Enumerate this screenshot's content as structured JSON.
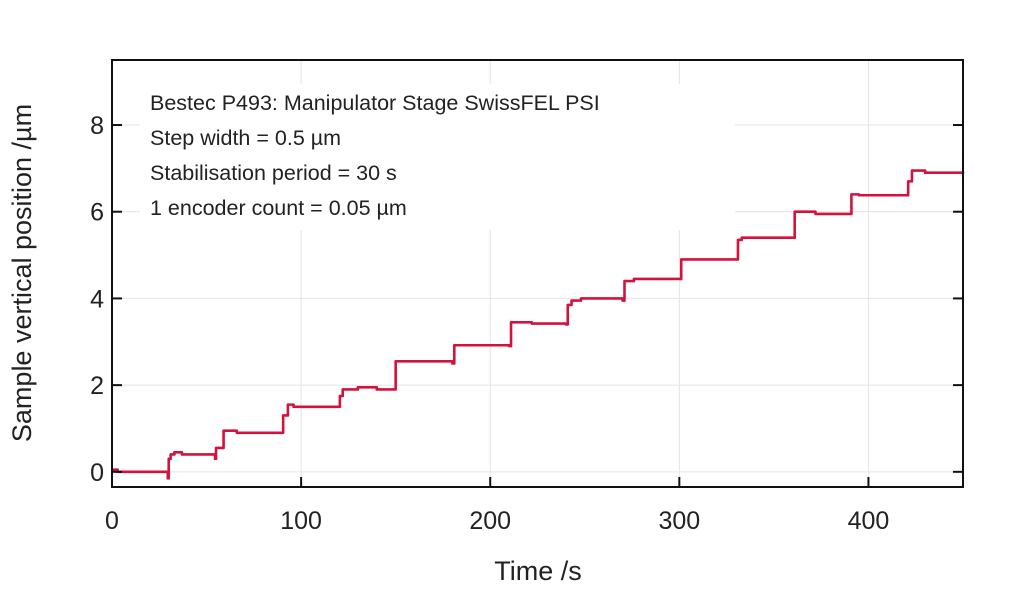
{
  "chart_data": {
    "type": "line",
    "title": "",
    "xlabel": "Time /s",
    "ylabel": "Sample vertical position /µm",
    "xlim": [
      0,
      450
    ],
    "ylim": [
      -0.35,
      9.5
    ],
    "xticks": [
      0,
      100,
      200,
      300,
      400
    ],
    "yticks": [
      0,
      2,
      4,
      6,
      8
    ],
    "grid": true,
    "annotations": [
      "Bestec P493: Manipulator Stage SwissFEL PSI",
      "Step width = 0.5 µm",
      "Stabilisation period = 30 s",
      "1 encoder count = 0.05 µm"
    ],
    "series": [
      {
        "name": "Sample vertical position",
        "color": "#d3123e",
        "step": "post",
        "points": [
          [
            0,
            0.05
          ],
          [
            3,
            0
          ],
          [
            29,
            0
          ],
          [
            29.5,
            -0.15
          ],
          [
            30,
            0.3
          ],
          [
            31,
            0.4
          ],
          [
            33,
            0.45
          ],
          [
            37,
            0.4
          ],
          [
            54,
            0.4
          ],
          [
            54.5,
            0.3
          ],
          [
            55,
            0.55
          ],
          [
            58,
            0.55
          ],
          [
            59,
            0.95
          ],
          [
            66,
            0.9
          ],
          [
            90,
            0.9
          ],
          [
            90.5,
            1.3
          ],
          [
            93,
            1.55
          ],
          [
            96,
            1.5
          ],
          [
            120,
            1.5
          ],
          [
            120.5,
            1.75
          ],
          [
            122,
            1.9
          ],
          [
            130,
            1.95
          ],
          [
            140,
            1.9
          ],
          [
            149,
            1.9
          ],
          [
            150,
            2.55
          ],
          [
            180,
            2.5
          ],
          [
            181,
            2.92
          ],
          [
            210,
            2.9
          ],
          [
            211,
            3.45
          ],
          [
            222,
            3.42
          ],
          [
            240,
            3.4
          ],
          [
            241,
            3.85
          ],
          [
            243,
            3.95
          ],
          [
            248,
            4.0
          ],
          [
            270,
            3.95
          ],
          [
            271,
            4.4
          ],
          [
            276,
            4.45
          ],
          [
            300,
            4.45
          ],
          [
            301,
            4.9
          ],
          [
            330,
            4.9
          ],
          [
            331,
            5.35
          ],
          [
            333,
            5.4
          ],
          [
            360,
            5.4
          ],
          [
            361,
            6.0
          ],
          [
            372,
            5.95
          ],
          [
            390,
            5.95
          ],
          [
            391,
            6.4
          ],
          [
            395,
            6.38
          ],
          [
            420,
            6.38
          ],
          [
            421,
            6.7
          ],
          [
            423,
            6.95
          ],
          [
            430,
            6.9
          ],
          [
            450,
            6.88
          ]
        ]
      }
    ]
  }
}
